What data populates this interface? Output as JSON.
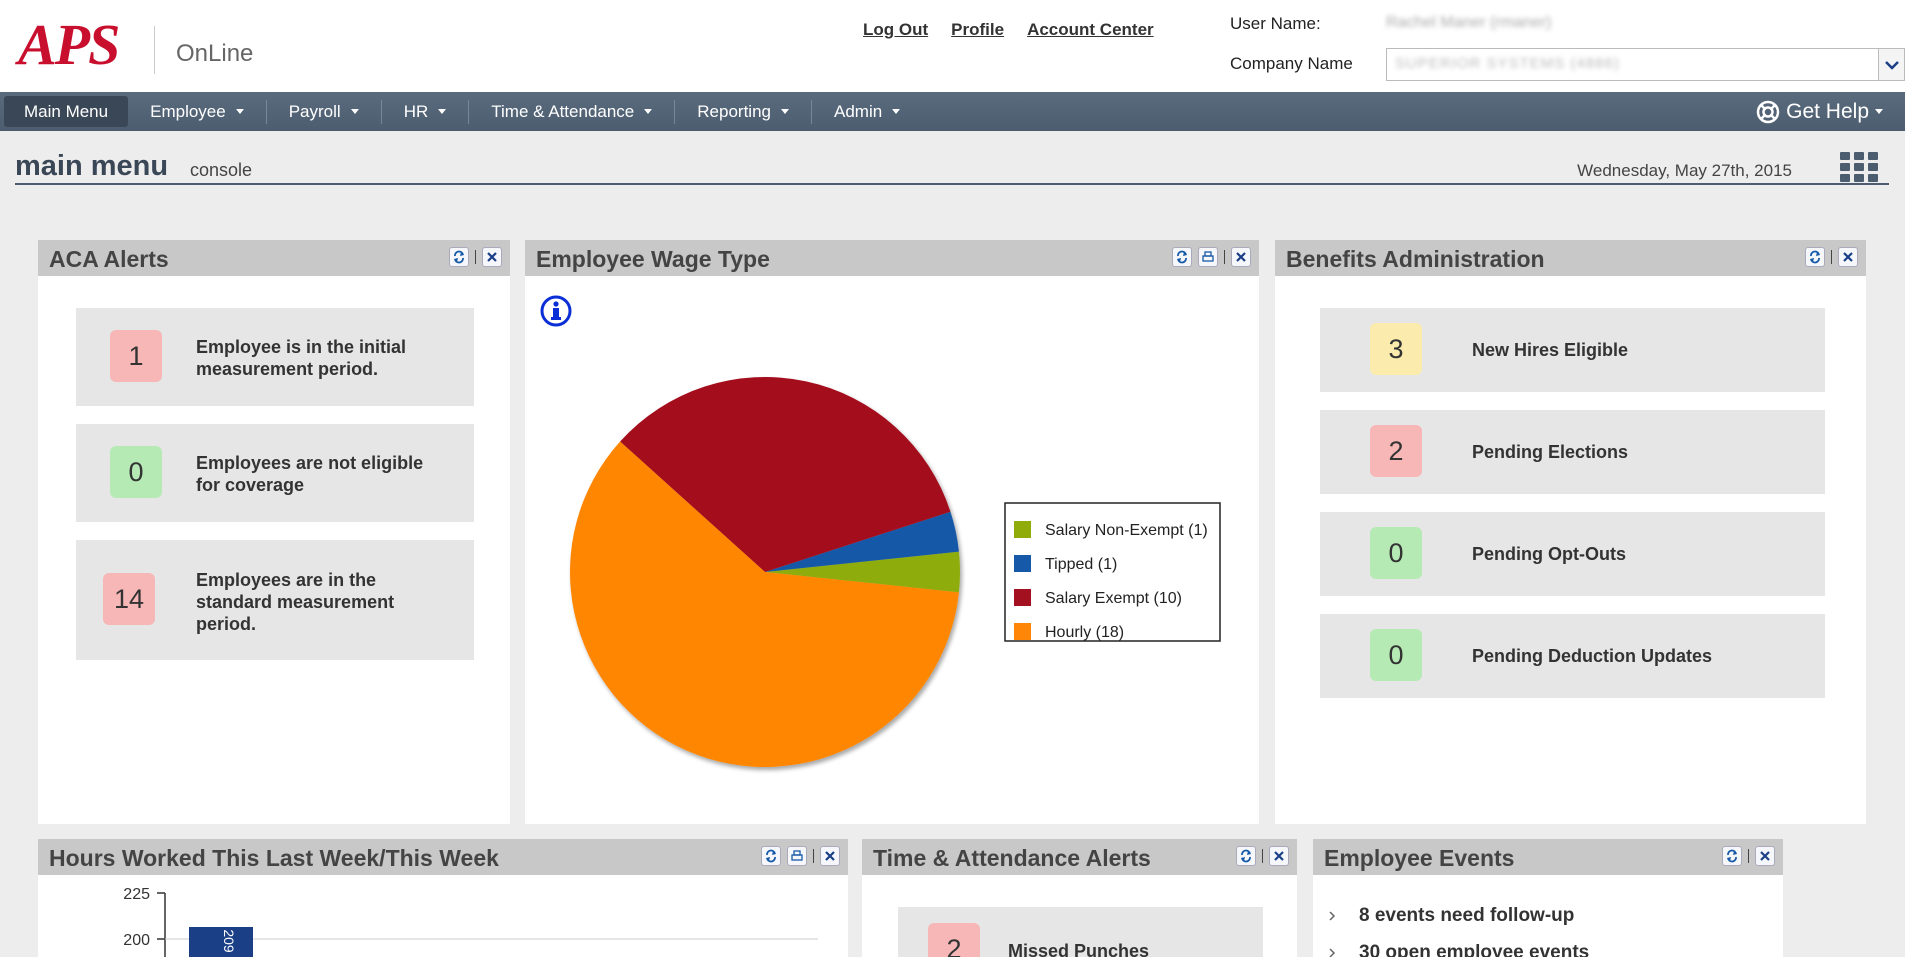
{
  "brand": {
    "logo": "APS",
    "product": "OnLine"
  },
  "header": {
    "links": [
      "Log Out",
      "Profile",
      "Account Center"
    ],
    "user_label": "User Name:",
    "user_value": "Rachel Maner (rmaner)",
    "company_label": "Company Name",
    "company_value": "SUPERIOR SYSTEMS (4886)"
  },
  "nav": {
    "items": [
      "Main Menu",
      "Employee",
      "Payroll",
      "HR",
      "Time & Attendance",
      "Reporting",
      "Admin"
    ],
    "help": "Get Help"
  },
  "page": {
    "title": "main menu",
    "subtitle": "console",
    "date": "Wednesday, May 27th, 2015"
  },
  "aca": {
    "title": "ACA Alerts",
    "alerts": [
      {
        "count": "1",
        "text": "Employee is in the initial measurement period."
      },
      {
        "count": "0",
        "text": "Employees are not eligible for coverage"
      },
      {
        "count": "14",
        "text": "Employees are in the standard measurement period."
      }
    ]
  },
  "wage": {
    "title": "Employee Wage Type"
  },
  "chart_data": {
    "type": "pie",
    "title": "Employee Wage Type",
    "categories": [
      "Salary Non-Exempt",
      "Tipped",
      "Salary Exempt",
      "Hourly"
    ],
    "values": [
      1,
      1,
      10,
      18
    ],
    "legend_labels": [
      "Salary Non-Exempt (1)",
      "Tipped (1)",
      "Salary Exempt (10)",
      "Hourly (18)"
    ],
    "colors": [
      "#8fac0b",
      "#1559a8",
      "#a3101f",
      "#ff8606"
    ],
    "legend": "right"
  },
  "benefits": {
    "title": "Benefits Administration",
    "items": [
      {
        "count": "3",
        "label": "New Hires Eligible"
      },
      {
        "count": "2",
        "label": "Pending Elections"
      },
      {
        "count": "0",
        "label": "Pending Opt-Outs"
      },
      {
        "count": "0",
        "label": "Pending Deduction Updates"
      }
    ]
  },
  "hours": {
    "title": "Hours Worked This Last Week/This Week",
    "ticks": [
      "225",
      "200"
    ],
    "bar_label": "209"
  },
  "ta": {
    "title": "Time & Attendance Alerts",
    "alert_count": "2",
    "alert_text": "Missed Punches"
  },
  "events": {
    "title": "Employee Events",
    "items": [
      "8 events need follow-up",
      "30 open employee events"
    ]
  }
}
